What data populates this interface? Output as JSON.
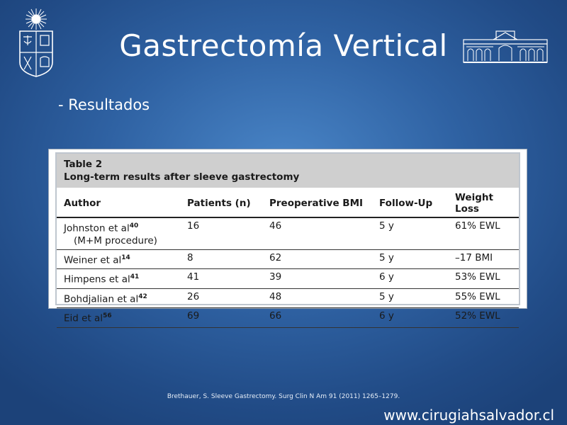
{
  "slide": {
    "title": "Gastrectomía Vertical",
    "subtitle": "- Resultados",
    "citation": "Brethauer, S. Sleeve Gastrectomy. Surg Clin N Am 91 (2011) 1265–1279.",
    "website": "www.cirugiahsalvador.cl"
  },
  "table": {
    "label": "Table 2",
    "caption": "Long-term results after sleeve gastrectomy",
    "headers": [
      "Author",
      "Patients (n)",
      "Preoperative BMI",
      "Follow-Up",
      "Weight Loss"
    ],
    "rows": [
      {
        "author": "Johnston et al",
        "ref": "40",
        "note": "(M+M procedure)",
        "patients": "16",
        "bmi": "46",
        "followup": "5 y",
        "loss": "61% EWL"
      },
      {
        "author": "Weiner et al",
        "ref": "14",
        "patients": "8",
        "bmi": "62",
        "followup": "5 y",
        "loss": "–17 BMI"
      },
      {
        "author": "Himpens et al",
        "ref": "41",
        "patients": "41",
        "bmi": "39",
        "followup": "6 y",
        "loss": "53% EWL"
      },
      {
        "author": "Bohdjalian et al",
        "ref": "42",
        "patients": "26",
        "bmi": "48",
        "followup": "5 y",
        "loss": "55% EWL"
      },
      {
        "author": "Eid et al",
        "ref": "56",
        "patients": "69",
        "bmi": "66",
        "followup": "6 y",
        "loss": "52% EWL"
      }
    ]
  },
  "icons": {
    "left_logo": "university-crest-icon",
    "right_logo": "hospital-building-icon"
  }
}
